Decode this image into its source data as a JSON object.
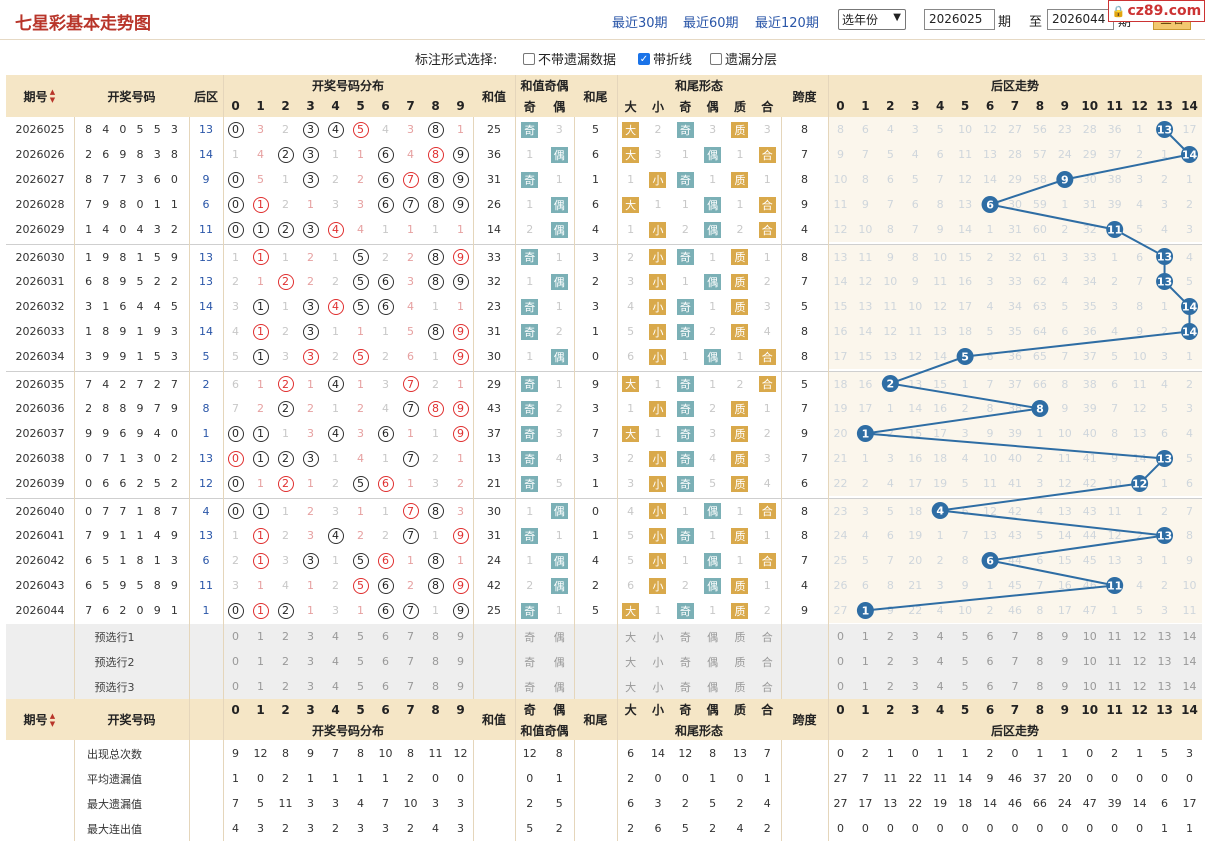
{
  "header": {
    "title": "七星彩基本走势图",
    "links": [
      "最近30期",
      "最近60期",
      "最近120期"
    ],
    "year_select": "选年份",
    "from_issue": "2026025",
    "period_label": "期",
    "to_label": "至",
    "to_issue": "2026044",
    "to_suffix": "期",
    "query_btn": "查看",
    "watermark": "cz89.com"
  },
  "options": {
    "label": "标注形式选择:",
    "items": [
      {
        "label": "不带遗漏数据",
        "checked": false
      },
      {
        "label": "带折线",
        "checked": true
      },
      {
        "label": "遗漏分层",
        "checked": false
      }
    ]
  },
  "columns": {
    "issue": "期号",
    "winning": "开奖号码",
    "back": "后区",
    "dist": "开奖号码分布",
    "sum": "和值",
    "sum_oe": "和值奇偶",
    "odd": "奇",
    "even": "偶",
    "tail": "和尾",
    "form": "和尾形态",
    "big": "大",
    "small": "小",
    "prime": "质",
    "composite": "合",
    "span": "跨度",
    "back_trend": "后区走势"
  },
  "digits": [
    "0",
    "1",
    "2",
    "3",
    "4",
    "5",
    "6",
    "7",
    "8",
    "9"
  ],
  "back_digits": [
    "0",
    "1",
    "2",
    "3",
    "4",
    "5",
    "6",
    "7",
    "8",
    "9",
    "10",
    "11",
    "12",
    "13",
    "14"
  ],
  "rows": [
    {
      "issue": "2026025",
      "nums": [
        "8",
        "4",
        "0",
        "5",
        "5",
        "3"
      ],
      "back": "13",
      "dist": [
        "B",
        "3",
        "2",
        "B",
        "B",
        "R",
        "4",
        "3",
        "B",
        "1"
      ],
      "sum": "25",
      "oe": [
        "奇",
        "3"
      ],
      "tail": "5",
      "form": [
        "大",
        "2",
        "奇",
        "3",
        "质",
        "3"
      ],
      "span": "8",
      "btrend": [
        "8",
        "6",
        "4",
        "3",
        "5",
        "10",
        "12",
        "27",
        "56",
        "23",
        "28",
        "36",
        "1",
        "B",
        "17"
      ]
    },
    {
      "issue": "2026026",
      "nums": [
        "2",
        "6",
        "9",
        "8",
        "3",
        "8"
      ],
      "back": "14",
      "dist": [
        "1",
        "4",
        "B",
        "B",
        "1",
        "1",
        "B",
        "4",
        "R",
        "B"
      ],
      "sum": "36",
      "oe": [
        "1",
        "偶"
      ],
      "tail": "6",
      "form": [
        "大",
        "3",
        "1",
        "偶",
        "1",
        "合"
      ],
      "span": "7",
      "btrend": [
        "9",
        "7",
        "5",
        "4",
        "6",
        "11",
        "13",
        "28",
        "57",
        "24",
        "29",
        "37",
        "2",
        "1",
        "B"
      ]
    },
    {
      "issue": "2026027",
      "nums": [
        "8",
        "7",
        "7",
        "3",
        "6",
        "0"
      ],
      "back": "9",
      "dist": [
        "B",
        "5",
        "1",
        "B",
        "2",
        "2",
        "B",
        "R",
        "B",
        "B"
      ],
      "sum": "31",
      "oe": [
        "奇",
        "1"
      ],
      "tail": "1",
      "form": [
        "1",
        "小",
        "奇",
        "1",
        "质",
        "1"
      ],
      "span": "8",
      "btrend": [
        "10",
        "8",
        "6",
        "5",
        "7",
        "12",
        "14",
        "29",
        "58",
        "B",
        "30",
        "38",
        "3",
        "2",
        "1"
      ]
    },
    {
      "issue": "2026028",
      "nums": [
        "7",
        "9",
        "8",
        "0",
        "1",
        "1"
      ],
      "back": "6",
      "dist": [
        "B",
        "R",
        "2",
        "1",
        "3",
        "3",
        "B",
        "B",
        "B",
        "B"
      ],
      "sum": "26",
      "oe": [
        "1",
        "偶"
      ],
      "tail": "6",
      "form": [
        "大",
        "1",
        "1",
        "偶",
        "1",
        "合"
      ],
      "span": "9",
      "btrend": [
        "11",
        "9",
        "7",
        "6",
        "8",
        "13",
        "B",
        "30",
        "59",
        "1",
        "31",
        "39",
        "4",
        "3",
        "2"
      ]
    },
    {
      "issue": "2026029",
      "nums": [
        "1",
        "4",
        "0",
        "4",
        "3",
        "2"
      ],
      "back": "11",
      "dist": [
        "B",
        "B",
        "B",
        "B",
        "R",
        "4",
        "1",
        "1",
        "1",
        "1"
      ],
      "sum": "14",
      "oe": [
        "2",
        "偶"
      ],
      "tail": "4",
      "form": [
        "1",
        "小",
        "2",
        "偶",
        "2",
        "合"
      ],
      "span": "4",
      "btrend": [
        "12",
        "10",
        "8",
        "7",
        "9",
        "14",
        "1",
        "31",
        "60",
        "2",
        "32",
        "B",
        "5",
        "4",
        "3"
      ]
    },
    {
      "issue": "2026030",
      "nums": [
        "1",
        "9",
        "8",
        "1",
        "5",
        "9"
      ],
      "back": "13",
      "dist": [
        "1",
        "R",
        "1",
        "2",
        "1",
        "B",
        "2",
        "2",
        "B",
        "R"
      ],
      "sum": "33",
      "oe": [
        "奇",
        "1"
      ],
      "tail": "3",
      "form": [
        "2",
        "小",
        "奇",
        "1",
        "质",
        "1"
      ],
      "span": "8",
      "btrend": [
        "13",
        "11",
        "9",
        "8",
        "10",
        "15",
        "2",
        "32",
        "61",
        "3",
        "33",
        "1",
        "6",
        "B",
        "4"
      ]
    },
    {
      "issue": "2026031",
      "nums": [
        "6",
        "8",
        "9",
        "5",
        "2",
        "2"
      ],
      "back": "13",
      "dist": [
        "2",
        "1",
        "R",
        "2",
        "2",
        "B",
        "B",
        "3",
        "B",
        "B"
      ],
      "sum": "32",
      "oe": [
        "1",
        "偶"
      ],
      "tail": "2",
      "form": [
        "3",
        "小",
        "1",
        "偶",
        "质",
        "2"
      ],
      "span": "7",
      "btrend": [
        "14",
        "12",
        "10",
        "9",
        "11",
        "16",
        "3",
        "33",
        "62",
        "4",
        "34",
        "2",
        "7",
        "B",
        "5"
      ]
    },
    {
      "issue": "2026032",
      "nums": [
        "3",
        "1",
        "6",
        "4",
        "4",
        "5"
      ],
      "back": "14",
      "dist": [
        "3",
        "B",
        "1",
        "B",
        "R",
        "B",
        "B",
        "4",
        "1",
        "1"
      ],
      "sum": "23",
      "oe": [
        "奇",
        "1"
      ],
      "tail": "3",
      "form": [
        "4",
        "小",
        "奇",
        "1",
        "质",
        "3"
      ],
      "span": "5",
      "btrend": [
        "15",
        "13",
        "11",
        "10",
        "12",
        "17",
        "4",
        "34",
        "63",
        "5",
        "35",
        "3",
        "8",
        "1",
        "B"
      ]
    },
    {
      "issue": "2026033",
      "nums": [
        "1",
        "8",
        "9",
        "1",
        "9",
        "3"
      ],
      "back": "14",
      "dist": [
        "4",
        "R",
        "2",
        "B",
        "1",
        "1",
        "1",
        "5",
        "B",
        "R"
      ],
      "sum": "31",
      "oe": [
        "奇",
        "2"
      ],
      "tail": "1",
      "form": [
        "5",
        "小",
        "奇",
        "2",
        "质",
        "4"
      ],
      "span": "8",
      "btrend": [
        "16",
        "14",
        "12",
        "11",
        "13",
        "18",
        "5",
        "35",
        "64",
        "6",
        "36",
        "4",
        "9",
        "2",
        "B"
      ]
    },
    {
      "issue": "2026034",
      "nums": [
        "3",
        "9",
        "9",
        "1",
        "5",
        "3"
      ],
      "back": "5",
      "dist": [
        "5",
        "B",
        "3",
        "R",
        "2",
        "R",
        "2",
        "6",
        "1",
        "R"
      ],
      "sum": "30",
      "oe": [
        "1",
        "偶"
      ],
      "tail": "0",
      "form": [
        "6",
        "小",
        "1",
        "偶",
        "1",
        "合"
      ],
      "span": "8",
      "btrend": [
        "17",
        "15",
        "13",
        "12",
        "14",
        "B",
        "6",
        "36",
        "65",
        "7",
        "37",
        "5",
        "10",
        "3",
        "1"
      ]
    },
    {
      "issue": "2026035",
      "nums": [
        "7",
        "4",
        "2",
        "7",
        "2",
        "7"
      ],
      "back": "2",
      "dist": [
        "6",
        "1",
        "R",
        "1",
        "B",
        "1",
        "3",
        "R",
        "2",
        "1"
      ],
      "sum": "29",
      "oe": [
        "奇",
        "1"
      ],
      "tail": "9",
      "form": [
        "大",
        "1",
        "奇",
        "1",
        "2",
        "合"
      ],
      "span": "5",
      "btrend": [
        "18",
        "16",
        "B",
        "13",
        "15",
        "1",
        "7",
        "37",
        "66",
        "8",
        "38",
        "6",
        "11",
        "4",
        "2"
      ]
    },
    {
      "issue": "2026036",
      "nums": [
        "2",
        "8",
        "8",
        "9",
        "7",
        "9"
      ],
      "back": "8",
      "dist": [
        "7",
        "2",
        "B",
        "2",
        "1",
        "2",
        "4",
        "B",
        "R",
        "R"
      ],
      "sum": "43",
      "oe": [
        "奇",
        "2"
      ],
      "tail": "3",
      "form": [
        "1",
        "小",
        "奇",
        "2",
        "质",
        "1"
      ],
      "span": "7",
      "btrend": [
        "19",
        "17",
        "1",
        "14",
        "16",
        "2",
        "8",
        "38",
        "B",
        "9",
        "39",
        "7",
        "12",
        "5",
        "3"
      ]
    },
    {
      "issue": "2026037",
      "nums": [
        "9",
        "9",
        "6",
        "9",
        "4",
        "0"
      ],
      "back": "1",
      "dist": [
        "B",
        "B",
        "1",
        "3",
        "B",
        "3",
        "B",
        "1",
        "1",
        "R"
      ],
      "sum": "37",
      "oe": [
        "奇",
        "3"
      ],
      "tail": "7",
      "form": [
        "大",
        "1",
        "奇",
        "3",
        "质",
        "2"
      ],
      "span": "9",
      "btrend": [
        "20",
        "B",
        "2",
        "15",
        "17",
        "3",
        "9",
        "39",
        "1",
        "10",
        "40",
        "8",
        "13",
        "6",
        "4"
      ]
    },
    {
      "issue": "2026038",
      "nums": [
        "0",
        "7",
        "1",
        "3",
        "0",
        "2"
      ],
      "back": "13",
      "dist": [
        "R",
        "B",
        "B",
        "B",
        "1",
        "4",
        "1",
        "B",
        "2",
        "1"
      ],
      "sum": "13",
      "oe": [
        "奇",
        "4"
      ],
      "tail": "3",
      "form": [
        "2",
        "小",
        "奇",
        "4",
        "质",
        "3"
      ],
      "span": "7",
      "btrend": [
        "21",
        "1",
        "3",
        "16",
        "18",
        "4",
        "10",
        "40",
        "2",
        "11",
        "41",
        "9",
        "14",
        "B",
        "5"
      ]
    },
    {
      "issue": "2026039",
      "nums": [
        "0",
        "6",
        "6",
        "2",
        "5",
        "2"
      ],
      "back": "12",
      "dist": [
        "B",
        "1",
        "R",
        "1",
        "2",
        "B",
        "R",
        "1",
        "3",
        "2"
      ],
      "sum": "21",
      "oe": [
        "奇",
        "5"
      ],
      "tail": "1",
      "form": [
        "3",
        "小",
        "奇",
        "5",
        "质",
        "4"
      ],
      "span": "6",
      "btrend": [
        "22",
        "2",
        "4",
        "17",
        "19",
        "5",
        "11",
        "41",
        "3",
        "12",
        "42",
        "10",
        "B",
        "1",
        "6"
      ]
    },
    {
      "issue": "2026040",
      "nums": [
        "0",
        "7",
        "7",
        "1",
        "8",
        "7"
      ],
      "back": "4",
      "dist": [
        "B",
        "B",
        "1",
        "2",
        "3",
        "1",
        "1",
        "R",
        "B",
        "3"
      ],
      "sum": "30",
      "oe": [
        "1",
        "偶"
      ],
      "tail": "0",
      "form": [
        "4",
        "小",
        "1",
        "偶",
        "1",
        "合"
      ],
      "span": "8",
      "btrend": [
        "23",
        "3",
        "5",
        "18",
        "B",
        "6",
        "12",
        "42",
        "4",
        "13",
        "43",
        "11",
        "1",
        "2",
        "7"
      ]
    },
    {
      "issue": "2026041",
      "nums": [
        "7",
        "9",
        "1",
        "1",
        "4",
        "9"
      ],
      "back": "13",
      "dist": [
        "1",
        "R",
        "2",
        "3",
        "B",
        "2",
        "2",
        "B",
        "1",
        "R"
      ],
      "sum": "31",
      "oe": [
        "奇",
        "1"
      ],
      "tail": "1",
      "form": [
        "5",
        "小",
        "奇",
        "1",
        "质",
        "1"
      ],
      "span": "8",
      "btrend": [
        "24",
        "4",
        "6",
        "19",
        "1",
        "7",
        "13",
        "43",
        "5",
        "14",
        "44",
        "12",
        "2",
        "B",
        "8"
      ]
    },
    {
      "issue": "2026042",
      "nums": [
        "6",
        "5",
        "1",
        "8",
        "1",
        "3"
      ],
      "back": "6",
      "dist": [
        "2",
        "R",
        "3",
        "B",
        "1",
        "B",
        "R",
        "1",
        "B",
        "1"
      ],
      "sum": "24",
      "oe": [
        "1",
        "偶"
      ],
      "tail": "4",
      "form": [
        "5",
        "小",
        "1",
        "偶",
        "1",
        "合"
      ],
      "span": "7",
      "btrend": [
        "25",
        "5",
        "7",
        "20",
        "2",
        "8",
        "B",
        "44",
        "6",
        "15",
        "45",
        "13",
        "3",
        "1",
        "9"
      ]
    },
    {
      "issue": "2026043",
      "nums": [
        "6",
        "5",
        "9",
        "5",
        "8",
        "9"
      ],
      "back": "11",
      "dist": [
        "3",
        "1",
        "4",
        "1",
        "2",
        "R",
        "B",
        "2",
        "B",
        "R"
      ],
      "sum": "42",
      "oe": [
        "2",
        "偶"
      ],
      "tail": "2",
      "form": [
        "6",
        "小",
        "2",
        "偶",
        "质",
        "1"
      ],
      "span": "4",
      "btrend": [
        "26",
        "6",
        "8",
        "21",
        "3",
        "9",
        "1",
        "45",
        "7",
        "16",
        "46",
        "B",
        "4",
        "2",
        "10"
      ]
    },
    {
      "issue": "2026044",
      "nums": [
        "7",
        "6",
        "2",
        "0",
        "9",
        "1"
      ],
      "back": "1",
      "dist": [
        "B",
        "R",
        "B",
        "1",
        "3",
        "1",
        "B",
        "B",
        "1",
        "B"
      ],
      "sum": "25",
      "oe": [
        "奇",
        "1"
      ],
      "tail": "5",
      "form": [
        "大",
        "1",
        "奇",
        "1",
        "质",
        "2"
      ],
      "span": "9",
      "btrend": [
        "27",
        "B",
        "9",
        "22",
        "4",
        "10",
        "2",
        "46",
        "8",
        "17",
        "47",
        "1",
        "5",
        "3",
        "11"
      ]
    }
  ],
  "presel": [
    "预选行1",
    "预选行2",
    "预选行3"
  ],
  "stats": {
    "labels": [
      "出现总次数",
      "平均遗漏值",
      "最大遗漏值",
      "最大连出值"
    ],
    "dist": [
      [
        "9",
        "12",
        "8",
        "9",
        "7",
        "8",
        "10",
        "8",
        "11",
        "12"
      ],
      [
        "1",
        "0",
        "2",
        "1",
        "1",
        "1",
        "1",
        "2",
        "0",
        "0"
      ],
      [
        "7",
        "5",
        "11",
        "3",
        "3",
        "4",
        "7",
        "10",
        "3",
        "3"
      ],
      [
        "4",
        "3",
        "2",
        "3",
        "2",
        "3",
        "3",
        "2",
        "4",
        "3"
      ]
    ],
    "oe": [
      [
        "12",
        "8"
      ],
      [
        "0",
        "1"
      ],
      [
        "2",
        "5"
      ],
      [
        "5",
        "2"
      ]
    ],
    "form": [
      [
        "6",
        "14",
        "12",
        "8",
        "13",
        "7"
      ],
      [
        "2",
        "0",
        "0",
        "1",
        "0",
        "1"
      ],
      [
        "6",
        "3",
        "2",
        "5",
        "2",
        "4"
      ],
      [
        "2",
        "6",
        "5",
        "2",
        "4",
        "2"
      ]
    ],
    "btrend": [
      [
        "0",
        "2",
        "1",
        "0",
        "1",
        "1",
        "2",
        "0",
        "1",
        "1",
        "0",
        "2",
        "1",
        "5",
        "3"
      ],
      [
        "27",
        "7",
        "11",
        "22",
        "11",
        "14",
        "9",
        "46",
        "37",
        "20",
        "0",
        "0",
        "0",
        "0",
        "0"
      ],
      [
        "27",
        "17",
        "13",
        "22",
        "19",
        "18",
        "14",
        "46",
        "66",
        "24",
        "47",
        "39",
        "14",
        "6",
        "17"
      ],
      [
        "0",
        "0",
        "0",
        "0",
        "0",
        "0",
        "0",
        "0",
        "0",
        "0",
        "0",
        "0",
        "0",
        "1",
        "1"
      ]
    ]
  },
  "colors": {
    "ball_blue": "#2e6da4",
    "red": "#e03030",
    "header_bg": "#f5e6c6"
  }
}
